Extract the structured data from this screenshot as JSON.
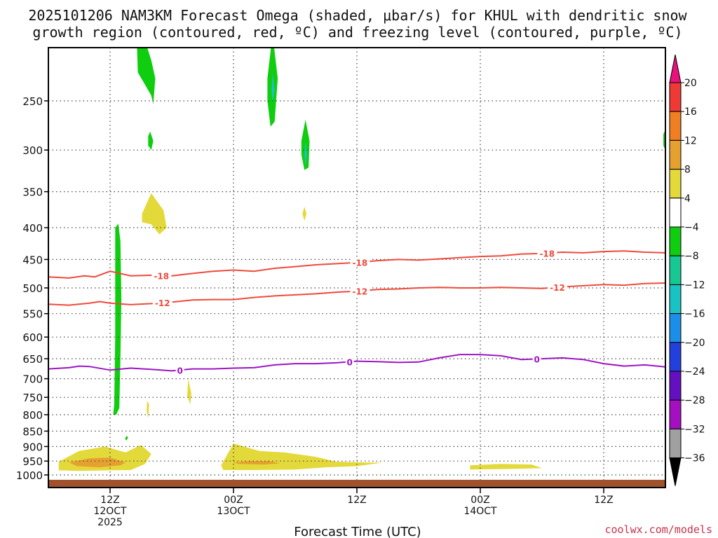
{
  "chart_data": {
    "type": "area",
    "title_line1": "2025101206 NAM3KM Forecast Omega (shaded, μbar/s) for KHUL with dendritic snow",
    "title_line2": "growth region (contoured, red, ºC) and freezing level (contoured, purple, ºC)",
    "xlabel": "Forecast Time (UTC)",
    "ylabel": "",
    "credit": "coolwx.com/models",
    "x_unit": "hours since 2025-10-12 06Z",
    "xlim": [
      0,
      60
    ],
    "ylim": [
      1000,
      200
    ],
    "y_axis": "pressure (hPa)",
    "yticks": [
      250,
      300,
      350,
      400,
      450,
      500,
      550,
      600,
      650,
      700,
      750,
      800,
      850,
      900,
      950,
      1000
    ],
    "xticks": [
      {
        "x": 6,
        "l1": "12Z",
        "l2": "12OCT",
        "l3": "2025"
      },
      {
        "x": 18,
        "l1": "00Z",
        "l2": "13OCT",
        "l3": ""
      },
      {
        "x": 30,
        "l1": "12Z",
        "l2": "",
        "l3": ""
      },
      {
        "x": 42,
        "l1": "00Z",
        "l2": "14OCT",
        "l3": ""
      },
      {
        "x": 54,
        "l1": "12Z",
        "l2": "",
        "l3": ""
      }
    ],
    "grid": true,
    "colorbar": {
      "ticks": [
        20,
        16,
        12,
        8,
        4,
        -4,
        -8,
        -12,
        -16,
        -20,
        -24,
        -28,
        -32,
        -36
      ],
      "bands": [
        {
          "lo": 20,
          "hi": 24,
          "color": "#e8127e"
        },
        {
          "lo": 16,
          "hi": 20,
          "color": "#ee3a35"
        },
        {
          "lo": 12,
          "hi": 16,
          "color": "#ef7f22"
        },
        {
          "lo": 8,
          "hi": 12,
          "color": "#e5a02f"
        },
        {
          "lo": 4,
          "hi": 8,
          "color": "#e4d93a"
        },
        {
          "lo": -4,
          "hi": 4,
          "color": "#ffffff"
        },
        {
          "lo": -8,
          "hi": -4,
          "color": "#0fcd0f"
        },
        {
          "lo": -12,
          "hi": -8,
          "color": "#18c892"
        },
        {
          "lo": -16,
          "hi": -12,
          "color": "#1ac3c3"
        },
        {
          "lo": -20,
          "hi": -16,
          "color": "#1b8fe8"
        },
        {
          "lo": -24,
          "hi": -20,
          "color": "#2340dd"
        },
        {
          "lo": -28,
          "hi": -24,
          "color": "#6410c0"
        },
        {
          "lo": -32,
          "hi": -28,
          "color": "#a40fc0"
        },
        {
          "lo": -36,
          "hi": -32,
          "color": "#a0a0a0"
        },
        {
          "lo": -40,
          "hi": -36,
          "color": "#000000"
        }
      ]
    },
    "series": [
      {
        "name": "-18C isotherm",
        "color": "#ef4a3c",
        "x": [
          0,
          2,
          3.5,
          4.5,
          6,
          8,
          10,
          12,
          14,
          16,
          18,
          20,
          22,
          24,
          26,
          28,
          30,
          32,
          34,
          36,
          38,
          40,
          42,
          44,
          46,
          48,
          50,
          52,
          54,
          56,
          58,
          60
        ],
        "p": [
          480,
          482,
          478,
          480,
          470,
          478,
          477,
          478,
          474,
          470,
          468,
          470,
          465,
          462,
          459,
          457,
          455,
          452,
          450,
          451,
          449,
          447,
          445,
          444,
          441,
          440,
          438,
          439,
          437,
          436,
          438,
          439
        ],
        "labels": [
          {
            "x": 11,
            "text": "-18"
          },
          {
            "x": 30.3,
            "text": "-18"
          },
          {
            "x": 48.5,
            "text": "-18"
          }
        ]
      },
      {
        "name": "-12C isotherm",
        "color": "#ef4a3c",
        "x": [
          0,
          2,
          4,
          5,
          6,
          8,
          10,
          12,
          14,
          16,
          18,
          20,
          22,
          24,
          26,
          28,
          30,
          32,
          34,
          36,
          38,
          40,
          42,
          44,
          46,
          48,
          50,
          52,
          54,
          56,
          58,
          60
        ],
        "p": [
          531,
          533,
          529,
          526,
          529,
          532,
          530,
          527,
          523,
          522,
          522,
          518,
          515,
          513,
          511,
          508,
          506,
          503,
          502,
          500,
          499,
          500,
          500,
          499,
          500,
          501,
          498,
          496,
          494,
          495,
          492,
          491
        ],
        "labels": [
          {
            "x": 11.1,
            "text": "-12"
          },
          {
            "x": 30.3,
            "text": "-12"
          },
          {
            "x": 49.5,
            "text": "-12"
          }
        ]
      },
      {
        "name": "0C freezing level",
        "color": "#9e14c6",
        "x": [
          0,
          2,
          3,
          4,
          6,
          8,
          10,
          12,
          14,
          16,
          18,
          20,
          22,
          24,
          26,
          28,
          30,
          32,
          34,
          36,
          38,
          40,
          42,
          44,
          46,
          48,
          50,
          52,
          54,
          56,
          58,
          60
        ],
        "p": [
          675,
          672,
          668,
          669,
          678,
          673,
          676,
          680,
          675,
          675,
          673,
          672,
          665,
          662,
          662,
          660,
          656,
          657,
          659,
          658,
          648,
          640,
          640,
          643,
          652,
          650,
          648,
          652,
          662,
          668,
          665,
          670
        ],
        "labels": [
          {
            "x": 12.8,
            "text": "0"
          },
          {
            "x": 29.3,
            "text": "0"
          },
          {
            "x": 47.5,
            "text": "0"
          }
        ]
      }
    ],
    "shaded_regions": [
      {
        "omega": -6,
        "x": [
          8.6,
          8.7,
          10,
          10.2,
          10.4,
          10.0,
          9.4,
          8.8,
          8.6
        ],
        "p": [
          200,
          225,
          245,
          253,
          230,
          215,
          200,
          200,
          200
        ]
      },
      {
        "omega": -6,
        "x": [
          9.7,
          9.9,
          10.2,
          10.0,
          9.7
        ],
        "p": [
          285,
          280,
          290,
          300,
          295
        ]
      },
      {
        "omega": -6,
        "x": [
          21.3,
          21.8,
          22.3,
          22.0,
          21.6,
          21.3
        ],
        "p": [
          230,
          195,
          230,
          270,
          275,
          250
        ]
      },
      {
        "omega": -6,
        "x": [
          24.6,
          25.0,
          25.4,
          25.3,
          24.9,
          24.6
        ],
        "p": [
          290,
          268,
          290,
          320,
          323,
          305
        ]
      },
      {
        "omega": -6,
        "x": [
          59.8,
          60,
          60,
          59.8
        ],
        "p": [
          283,
          278,
          300,
          295
        ]
      },
      {
        "omega": -6,
        "x": [
          6.5,
          6.8,
          7.0,
          7.1,
          7.0,
          6.9,
          6.6,
          6.3,
          6.4,
          6.5
        ],
        "p": [
          400,
          394,
          420,
          520,
          650,
          780,
          800,
          800,
          770,
          600
        ]
      },
      {
        "omega": -6,
        "x": [
          7.6,
          7.75,
          7.6,
          7.45,
          7.6
        ],
        "p": [
          865,
          870,
          880,
          875,
          865
        ]
      },
      {
        "omega": -14,
        "x": [
          21.8,
          22.0,
          21.8,
          21.7
        ],
        "p": [
          225,
          240,
          252,
          240
        ]
      },
      {
        "omega": -14,
        "x": [
          25.0,
          25.15,
          25.0,
          24.9
        ],
        "p": [
          290,
          305,
          318,
          305
        ]
      },
      {
        "omega": 6,
        "x": [
          9.1,
          10.0,
          11.2,
          11.5,
          10.8,
          10.0,
          9.1,
          9.1
        ],
        "p": [
          380,
          352,
          375,
          400,
          410,
          395,
          392,
          380
        ]
      },
      {
        "omega": 6,
        "x": [
          24.9,
          25.1,
          24.9,
          24.7,
          24.9
        ],
        "p": [
          370,
          380,
          390,
          380,
          370
        ]
      },
      {
        "omega": 6,
        "x": [
          9.6,
          9.8,
          9.7,
          9.55,
          9.6
        ],
        "p": [
          760,
          770,
          810,
          790,
          760
        ]
      },
      {
        "omega": 6,
        "x": [
          13.6,
          13.9,
          13.8,
          13.5,
          13.6
        ],
        "p": [
          700,
          740,
          770,
          745,
          700
        ]
      },
      {
        "omega": 6,
        "x": [
          1.0,
          3.0,
          5.5,
          7.5,
          9.0,
          10.0,
          9.4,
          8.0,
          6.0,
          3.0,
          1.0,
          1.0
        ],
        "p": [
          952,
          915,
          900,
          920,
          895,
          925,
          960,
          982,
          983,
          985,
          983,
          952
        ]
      },
      {
        "omega": 6,
        "x": [
          16.8,
          18.0,
          20.5,
          23.0,
          26.0,
          28.0,
          31.0,
          32.5,
          30.0,
          27.0,
          24.0,
          20.0,
          17.0,
          16.8
        ],
        "p": [
          965,
          890,
          915,
          920,
          935,
          952,
          955,
          955,
          968,
          972,
          980,
          982,
          982,
          965
        ]
      },
      {
        "omega": 6,
        "x": [
          41.0,
          44.0,
          47.0,
          48.0,
          45.0,
          41.0,
          41.0
        ],
        "p": [
          965,
          960,
          962,
          975,
          978,
          980,
          965
        ]
      },
      {
        "omega": 10,
        "x": [
          2.0,
          4.0,
          6.0,
          7.5,
          7.0,
          5.0,
          2.8,
          2.0
        ],
        "p": [
          955,
          940,
          938,
          955,
          965,
          972,
          968,
          955
        ]
      },
      {
        "omega": 10,
        "x": [
          18.0,
          19.5,
          21.5,
          22.5,
          21.0,
          18.5,
          18.0
        ],
        "p": [
          955,
          950,
          950,
          958,
          962,
          960,
          955
        ]
      }
    ],
    "surface_pressure_hPa": 1018
  }
}
